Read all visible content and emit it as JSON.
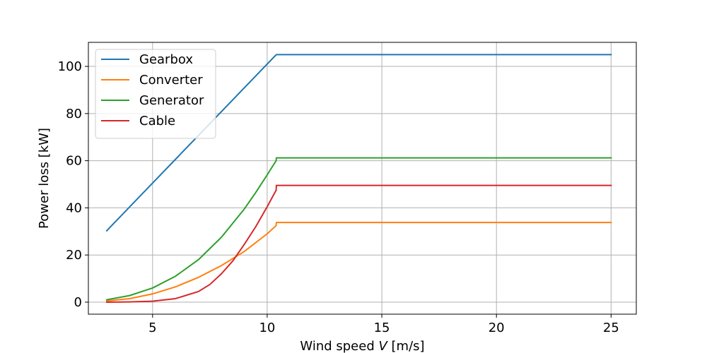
{
  "chart_data": {
    "type": "line",
    "title": "",
    "xlabel": "Wind speed ",
    "xlabel_var": "V",
    "xlabel_unit": " [m/s]",
    "ylabel": "Power loss [kW]",
    "xlim": [
      2.2,
      26.1
    ],
    "ylim": [
      -5.1,
      110.2
    ],
    "xticks": [
      5,
      10,
      15,
      20,
      25
    ],
    "yticks": [
      0,
      20,
      40,
      60,
      80,
      100
    ],
    "xtick_labels": [
      "5",
      "10",
      "15",
      "20",
      "25"
    ],
    "ytick_labels": [
      "0",
      "20",
      "40",
      "60",
      "80",
      "100"
    ],
    "grid": true,
    "legend_position": "top-left",
    "series": [
      {
        "name": "Gearbox",
        "color": "#1f77b4",
        "x": [
          3,
          4,
          5,
          6,
          7,
          8,
          9,
          10,
          10.4,
          11,
          15,
          20,
          25
        ],
        "y": [
          30.3,
          40.4,
          50.5,
          60.6,
          70.7,
          80.8,
          90.9,
          101.0,
          105.0,
          105.0,
          105.0,
          105.0,
          105.0
        ]
      },
      {
        "name": "Converter",
        "color": "#ff7f0e",
        "x": [
          3,
          4,
          5,
          6,
          7,
          8,
          9,
          10,
          10.39,
          10.4,
          11,
          15,
          20,
          25
        ],
        "y": [
          0.5,
          1.5,
          3.5,
          6.5,
          10.5,
          15.5,
          21.5,
          29.0,
          32.5,
          33.8,
          33.8,
          33.8,
          33.8,
          33.8
        ]
      },
      {
        "name": "Generator",
        "color": "#2ca02c",
        "x": [
          3,
          4,
          5,
          6,
          7,
          8,
          9,
          9.5,
          10,
          10.39,
          10.4,
          11,
          15,
          20,
          25
        ],
        "y": [
          1.0,
          2.8,
          6.0,
          11.0,
          18.0,
          27.5,
          39.5,
          46.5,
          54.0,
          60.0,
          61.2,
          61.2,
          61.2,
          61.2,
          61.2
        ]
      },
      {
        "name": "Cable",
        "color": "#d62728",
        "x": [
          3,
          4,
          5,
          6,
          7,
          7.5,
          8,
          8.5,
          9,
          9.5,
          10,
          10.39,
          10.4,
          11,
          15,
          20,
          25
        ],
        "y": [
          0.0,
          0.1,
          0.4,
          1.5,
          4.5,
          7.5,
          12.0,
          17.5,
          24.5,
          32.0,
          40.5,
          47.5,
          49.5,
          49.5,
          49.5,
          49.5,
          49.5
        ]
      }
    ]
  }
}
